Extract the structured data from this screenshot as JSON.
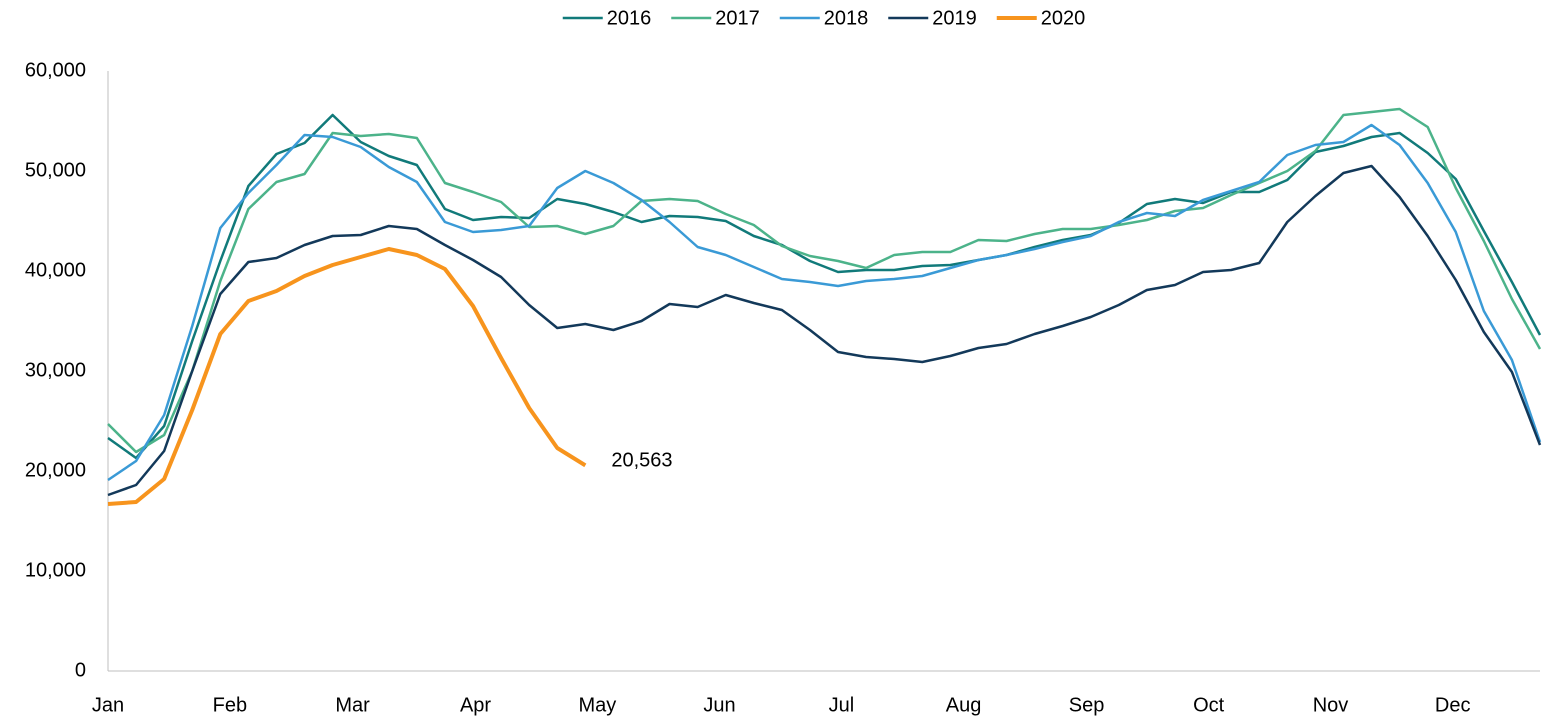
{
  "chart_data": {
    "type": "line",
    "x": [
      1,
      2,
      3,
      4,
      5,
      6,
      7,
      8,
      9,
      10,
      11,
      12,
      13,
      14,
      15,
      16,
      17,
      18,
      19,
      20,
      21,
      22,
      23,
      24,
      25,
      26,
      27,
      28,
      29,
      30,
      31,
      32,
      33,
      34,
      35,
      36,
      37,
      38,
      39,
      40,
      41,
      42,
      43,
      44,
      45,
      46,
      47,
      48,
      49,
      50,
      51,
      52
    ],
    "xlim": [
      1,
      52
    ],
    "xticks": [
      {
        "value": 1,
        "label": "Jan"
      },
      {
        "value": 5.34,
        "label": "Feb"
      },
      {
        "value": 9.71,
        "label": "Mar"
      },
      {
        "value": 14.09,
        "label": "Apr"
      },
      {
        "value": 18.43,
        "label": "May"
      },
      {
        "value": 22.78,
        "label": "Jun"
      },
      {
        "value": 27.12,
        "label": "Jul"
      },
      {
        "value": 31.47,
        "label": "Aug"
      },
      {
        "value": 35.85,
        "label": "Sep"
      },
      {
        "value": 40.2,
        "label": "Oct"
      },
      {
        "value": 44.54,
        "label": "Nov"
      },
      {
        "value": 48.89,
        "label": "Dec"
      }
    ],
    "ylim": [
      0,
      60000
    ],
    "yticks": [
      0,
      {
        "value": 10000,
        "label": "10,000"
      },
      {
        "value": 20000,
        "label": "20,000"
      },
      {
        "value": 30000,
        "label": "30,000"
      },
      {
        "value": 40000,
        "label": "40,000"
      },
      {
        "value": 50000,
        "label": "50,000"
      },
      {
        "value": 60000,
        "label": "60,000"
      }
    ],
    "legend": "top",
    "series": [
      {
        "name": "2016",
        "color": "#117a7a",
        "values": [
          23300,
          21300,
          24500,
          33000,
          41000,
          48500,
          51700,
          52800,
          55600,
          52900,
          51500,
          50600,
          46200,
          45100,
          45400,
          45300,
          47200,
          46700,
          45900,
          44900,
          45500,
          45400,
          45000,
          43500,
          42600,
          41000,
          39900,
          40100,
          40100,
          40500,
          40600,
          41100,
          41600,
          42400,
          43100,
          43600,
          44800,
          46700,
          47200,
          46800,
          47900,
          47900,
          49100,
          51900,
          52500,
          53400,
          53800,
          51800,
          49200,
          44000,
          38900,
          33600
        ]
      },
      {
        "name": "2017",
        "color": "#4cb38a",
        "values": [
          24700,
          21900,
          23600,
          30000,
          39000,
          46200,
          48900,
          49700,
          53800,
          53500,
          53700,
          53300,
          48800,
          47900,
          46900,
          44400,
          44500,
          43700,
          44500,
          47000,
          47200,
          47000,
          45700,
          44600,
          42500,
          41500,
          41000,
          40300,
          41600,
          41900,
          41900,
          43100,
          43000,
          43700,
          44200,
          44200,
          44600,
          45100,
          46000,
          46300,
          47600,
          48800,
          50000,
          52000,
          55600,
          55900,
          56200,
          54400,
          48300,
          43000,
          37200,
          32200
        ]
      },
      {
        "name": "2018",
        "color": "#3a9ad6",
        "values": [
          19100,
          21000,
          25600,
          34500,
          44300,
          47800,
          50600,
          53600,
          53400,
          52400,
          50400,
          48900,
          44900,
          43900,
          44100,
          44500,
          48300,
          50000,
          48800,
          47100,
          44900,
          42400,
          41600,
          40400,
          39200,
          38900,
          38500,
          39000,
          39200,
          39500,
          40300,
          41100,
          41600,
          42200,
          42900,
          43500,
          44900,
          45800,
          45500,
          47100,
          48000,
          48900,
          51600,
          52600,
          52900,
          54600,
          52600,
          48800,
          43900,
          36000,
          31100,
          22900
        ]
      },
      {
        "name": "2019",
        "color": "#13395a",
        "values": [
          17600,
          18600,
          22000,
          30000,
          37700,
          40900,
          41300,
          42600,
          43500,
          43600,
          44500,
          44200,
          42600,
          41100,
          39400,
          36600,
          34300,
          34700,
          34100,
          35000,
          36700,
          36400,
          37600,
          36800,
          36100,
          34100,
          31900,
          31400,
          31200,
          30900,
          31500,
          32300,
          32700,
          33700,
          34500,
          35400,
          36600,
          38100,
          38600,
          39900,
          40100,
          40800,
          44900,
          47500,
          49800,
          50500,
          47400,
          43500,
          39100,
          33900,
          29900,
          22600
        ]
      },
      {
        "name": "2020",
        "color": "#f7941d",
        "values": [
          16700,
          16900,
          19200,
          26100,
          33700,
          37000,
          38000,
          39500,
          40600,
          41400,
          42200,
          41600,
          40200,
          36500,
          31300,
          26300,
          22300,
          20563,
          null,
          null,
          null,
          null,
          null,
          null,
          null,
          null,
          null,
          null,
          null,
          null,
          null,
          null,
          null,
          null,
          null,
          null,
          null,
          null,
          null,
          null,
          null,
          null,
          null,
          null,
          null,
          null,
          null,
          null,
          null,
          null,
          null,
          null
        ],
        "value_labels": [
          null,
          null,
          null,
          null,
          null,
          null,
          null,
          null,
          null,
          null,
          null,
          null,
          null,
          null,
          null,
          null,
          null,
          "20,563",
          null,
          null,
          null,
          null,
          null,
          null,
          null,
          null,
          null,
          null,
          null,
          null,
          null,
          null,
          null,
          null,
          null,
          null,
          null,
          null,
          null,
          null,
          null,
          null,
          null,
          null,
          null,
          null,
          null,
          null,
          null,
          null,
          null,
          null
        ]
      }
    ]
  }
}
